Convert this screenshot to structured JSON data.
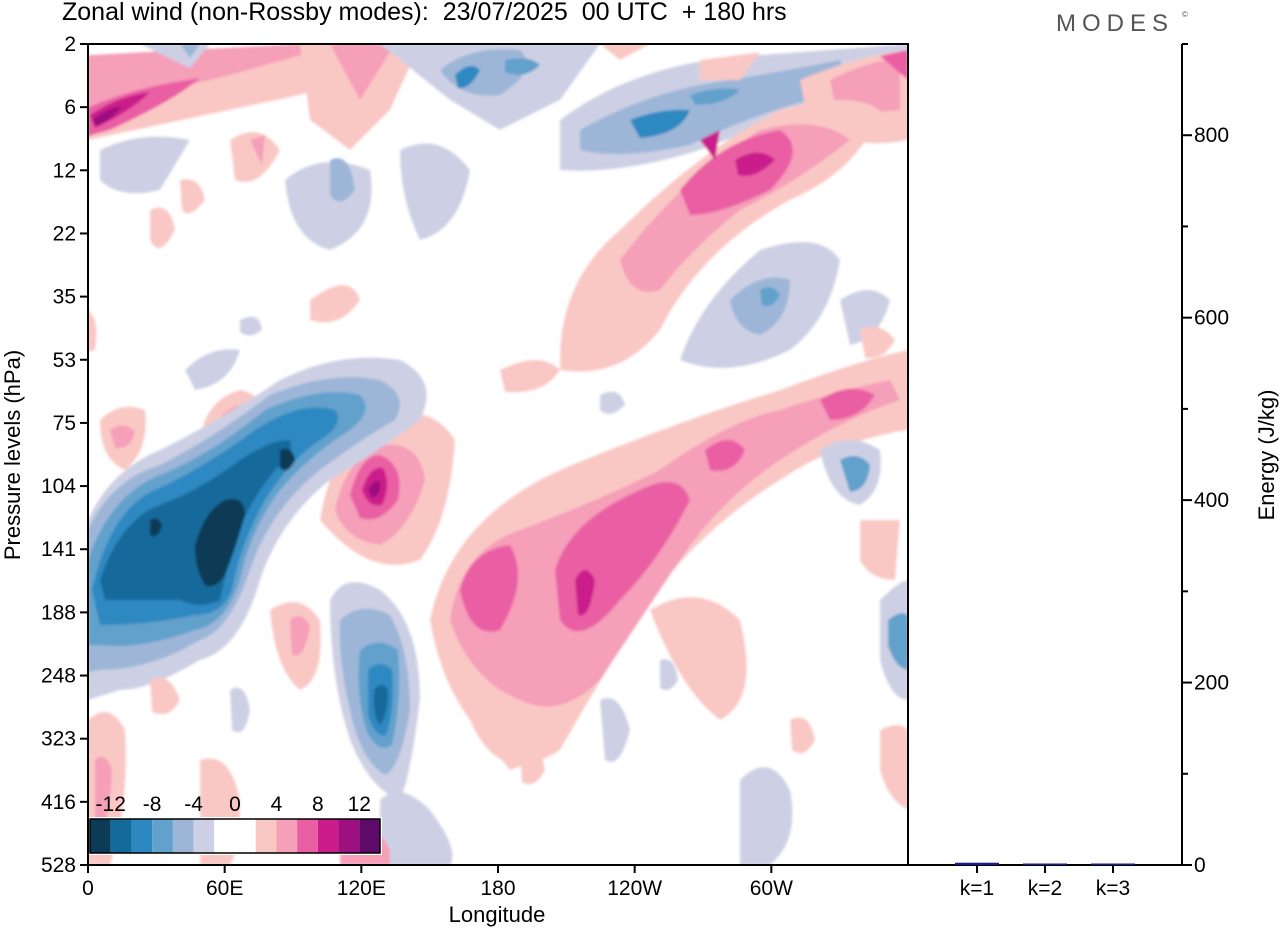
{
  "header": {
    "title": "Zonal wind (non-Rossby modes):  23/07/2025  00 UTC  + 180 hrs",
    "brand": "MODES",
    "brand_mark": "©"
  },
  "chart_data": [
    {
      "type": "heatmap",
      "title": "Zonal wind (non-Rossby modes)",
      "xlabel": "Longitude",
      "ylabel": "Pressure levels (hPa)",
      "x_ticks": [
        "0",
        "60E",
        "120E",
        "180",
        "120W",
        "60W"
      ],
      "x_tick_degrees": [
        0,
        60,
        120,
        180,
        240,
        300
      ],
      "xlim": [
        0,
        360
      ],
      "y_ticks": [
        "2",
        "6",
        "12",
        "22",
        "35",
        "53",
        "75",
        "104",
        "141",
        "188",
        "248",
        "323",
        "416",
        "528"
      ],
      "colorbar": {
        "labels": [
          "-12",
          "-8",
          "-4",
          "0",
          "4",
          "8",
          "12"
        ],
        "bounds": [
          -14,
          -12,
          -10,
          -8,
          -6,
          -4,
          -2,
          2,
          4,
          6,
          8,
          10,
          12,
          14
        ],
        "colors": [
          "#0b3b57",
          "#14699b",
          "#2d88c1",
          "#62a1cc",
          "#9db6d8",
          "#cdd0e4",
          "#ffffff",
          "#ffffff",
          "#fac8c4",
          "#f59fb9",
          "#ea5fa3",
          "#ca1d8b",
          "#9c107f",
          "#5d0a6a"
        ]
      },
      "features": [
        {
          "name": "Easterly jet core",
          "lon": 57,
          "level": 141,
          "value": -14
        },
        {
          "name": "Easterly belt",
          "lon": 20,
          "level": 141,
          "value": -10
        },
        {
          "name": "Easterly arm",
          "lon": 85,
          "level": 90,
          "value": -10
        },
        {
          "name": "Easterly core",
          "lon": 128,
          "level": 290,
          "value": -12
        },
        {
          "name": "Westerly core",
          "lon": 124,
          "level": 110,
          "value": 12
        },
        {
          "name": "Westerly core",
          "lon": 5,
          "level": 6,
          "value": 12
        },
        {
          "name": "Westerly belt",
          "lon": 180,
          "level": 150,
          "value": 10
        },
        {
          "name": "Westerly belt",
          "lon": 220,
          "level": 165,
          "value": 10
        },
        {
          "name": "Westerly belt",
          "lon": 280,
          "level": 95,
          "value": 9
        },
        {
          "name": "Easterly upper",
          "lon": 248,
          "level": 8,
          "value": -8
        },
        {
          "name": "Westerly upper",
          "lon": 285,
          "level": 12,
          "value": 9
        }
      ]
    },
    {
      "type": "bar",
      "ylabel": "Energy (J/kg)",
      "categories": [
        "k=1",
        "k=2",
        "k=3"
      ],
      "values": [
        2.5,
        1.2,
        1.0
      ],
      "ylim": [
        0,
        900
      ],
      "y_ticks": [
        0,
        200,
        400,
        600,
        800
      ],
      "bar_color": "#1a1a8c"
    }
  ]
}
